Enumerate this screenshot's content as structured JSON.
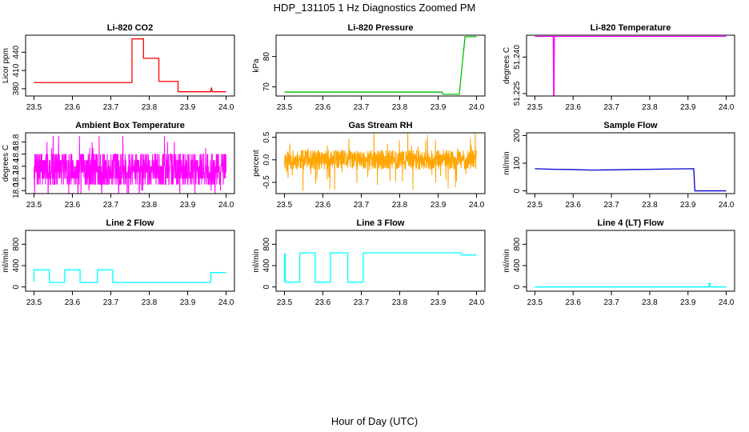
{
  "figure": {
    "title": "HDP_131105  1 Hz Diagnostics Zoomed PM",
    "xlabel": "Hour of Day (UTC)"
  },
  "chart_data": [
    {
      "type": "line",
      "title": "Li-820 CO2",
      "ylabel": "Licor ppm",
      "color": "#ff0000",
      "xlim": [
        23.5,
        24.0
      ],
      "ylim": [
        368,
        468
      ],
      "xticks": [
        "23.5",
        "23.6",
        "23.7",
        "23.8",
        "23.9",
        "24.0"
      ],
      "yticks": [
        {
          "value": 380,
          "label": "380"
        },
        {
          "value": 410,
          "label": "410"
        },
        {
          "value": 440,
          "label": "440"
        }
      ],
      "series": [
        {
          "x": [
            23.5,
            23.755,
            23.755,
            23.785,
            23.785,
            23.825,
            23.825,
            23.875,
            23.875,
            23.96,
            23.962,
            23.964,
            24.0
          ],
          "y": [
            390,
            390,
            462,
            462,
            430,
            430,
            392,
            392,
            375,
            375,
            382,
            375,
            375
          ]
        }
      ]
    },
    {
      "type": "line",
      "title": "Li-820 Pressure",
      "ylabel": "kPa",
      "color": "#00c000",
      "xlim": [
        23.5,
        24.0
      ],
      "ylim": [
        67,
        87
      ],
      "xticks": [
        "23.5",
        "23.6",
        "23.7",
        "23.8",
        "23.9",
        "24.0"
      ],
      "yticks": [
        {
          "value": 70,
          "label": "70"
        },
        {
          "value": 80,
          "label": "80"
        }
      ],
      "series": [
        {
          "x": [
            23.5,
            23.91,
            23.912,
            23.955,
            23.96,
            23.97,
            23.973,
            24.0
          ],
          "y": [
            68.3,
            68.3,
            67.6,
            67.6,
            74,
            86.5,
            86.5,
            86.5
          ]
        }
      ]
    },
    {
      "type": "line",
      "title": "Li-820 Temperature",
      "ylabel": "degrees C",
      "color": "#ff00ff",
      "xlim": [
        23.5,
        24.0
      ],
      "ylim": [
        51.224,
        51.249
      ],
      "xticks": [
        "23.5",
        "23.6",
        "23.7",
        "23.8",
        "23.9",
        "24.0"
      ],
      "yticks": [
        {
          "value": 51.225,
          "label": "51.225"
        },
        {
          "value": 51.24,
          "label": "51.240"
        }
      ],
      "series": [
        {
          "x": [
            23.5,
            23.548,
            23.549,
            23.55,
            23.551,
            24.0
          ],
          "y": [
            51.2485,
            51.2485,
            51.224,
            51.224,
            51.2485,
            51.2485
          ]
        }
      ]
    },
    {
      "type": "line",
      "title": "Ambient Box Temperature",
      "ylabel": "degrees C",
      "color": "#ff00ff",
      "xlim": [
        23.5,
        24.0
      ],
      "ylim": [
        17.95,
        18.95
      ],
      "xticks": [
        "23.5",
        "23.6",
        "23.7",
        "23.8",
        "23.9",
        "24.0"
      ],
      "yticks": [
        {
          "value": 18.0,
          "label": "18.0"
        },
        {
          "value": 18.2,
          "label": "18.2"
        },
        {
          "value": 18.4,
          "label": "18.4"
        },
        {
          "value": 18.6,
          "label": "18.6"
        },
        {
          "value": 18.8,
          "label": "18.8"
        }
      ],
      "noise": {
        "seed": 7,
        "n": 900,
        "center": 18.35,
        "amp": 0.3,
        "spike": 0.55,
        "step": 0.1
      }
    },
    {
      "type": "line",
      "title": "Gas Stream RH",
      "ylabel": "percent",
      "color": "#ffa500",
      "xlim": [
        23.5,
        24.0
      ],
      "ylim": [
        -0.75,
        0.6
      ],
      "xticks": [
        "23.5",
        "23.6",
        "23.7",
        "23.8",
        "23.9",
        "24.0"
      ],
      "yticks": [
        {
          "value": -0.5,
          "label": "-0.5"
        },
        {
          "value": 0.0,
          "label": "0.0"
        },
        {
          "value": 0.5,
          "label": "0.5"
        }
      ],
      "noise": {
        "seed": 11,
        "n": 900,
        "center": 0.0,
        "amp": 0.22,
        "spike": 0.7,
        "step": 0
      }
    },
    {
      "type": "line",
      "title": "Sample Flow",
      "ylabel": "ml/min",
      "color": "#0000cd",
      "xlim": [
        23.5,
        24.0
      ],
      "ylim": [
        -10,
        210
      ],
      "xticks": [
        "23.5",
        "23.6",
        "23.7",
        "23.8",
        "23.9",
        "24.0"
      ],
      "yticks": [
        {
          "value": 0,
          "label": "0"
        },
        {
          "value": 100,
          "label": "100"
        },
        {
          "value": 200,
          "label": "200"
        }
      ],
      "series": [
        {
          "x": [
            23.5,
            23.55,
            23.6,
            23.65,
            23.7,
            23.75,
            23.8,
            23.85,
            23.915,
            23.918,
            24.0
          ],
          "y": [
            80,
            78,
            77,
            75,
            76,
            77,
            78,
            79,
            80,
            0,
            0
          ]
        }
      ]
    },
    {
      "type": "line",
      "title": "Line 2 Flow",
      "ylabel": "ml/min",
      "color": "#00ffff",
      "xlim": [
        23.5,
        24.0
      ],
      "ylim": [
        -80,
        1060
      ],
      "xticks": [
        "23.5",
        "23.6",
        "23.7",
        "23.8",
        "23.9",
        "24.0"
      ],
      "yticks": [
        {
          "value": 0,
          "label": "0"
        },
        {
          "value": 400,
          "label": "400"
        },
        {
          "value": 800,
          "label": "800"
        }
      ],
      "series": [
        {
          "x": [
            23.5,
            23.5,
            23.54,
            23.54,
            23.58,
            23.58,
            23.62,
            23.62,
            23.665,
            23.665,
            23.705,
            23.705,
            23.96,
            23.96,
            24.0
          ],
          "y": [
            100,
            320,
            320,
            85,
            85,
            320,
            320,
            85,
            85,
            320,
            320,
            85,
            85,
            270,
            270
          ]
        }
      ]
    },
    {
      "type": "line",
      "title": "Line 3 Flow",
      "ylabel": "ml/min",
      "color": "#00ffff",
      "xlim": [
        23.5,
        24.0
      ],
      "ylim": [
        -80,
        1060
      ],
      "xticks": [
        "23.5",
        "23.6",
        "23.7",
        "23.8",
        "23.9",
        "24.0"
      ],
      "yticks": [
        {
          "value": 0,
          "label": "0"
        },
        {
          "value": 400,
          "label": "400"
        },
        {
          "value": 800,
          "label": "800"
        }
      ],
      "series": [
        {
          "x": [
            23.5,
            23.5,
            23.502,
            23.502,
            23.54,
            23.54,
            23.58,
            23.58,
            23.62,
            23.62,
            23.665,
            23.665,
            23.705,
            23.705,
            23.96,
            23.96,
            24.0
          ],
          "y": [
            100,
            620,
            620,
            90,
            90,
            640,
            640,
            90,
            90,
            640,
            640,
            90,
            90,
            640,
            640,
            600,
            600
          ]
        }
      ]
    },
    {
      "type": "line",
      "title": "Line 4 (LT) Flow",
      "ylabel": "ml/min",
      "color": "#00ffff",
      "xlim": [
        23.5,
        24.0
      ],
      "ylim": [
        -80,
        1060
      ],
      "xticks": [
        "23.5",
        "23.6",
        "23.7",
        "23.8",
        "23.9",
        "24.0"
      ],
      "yticks": [
        {
          "value": 0,
          "label": "0"
        },
        {
          "value": 400,
          "label": "400"
        },
        {
          "value": 800,
          "label": "800"
        }
      ],
      "series": [
        {
          "x": [
            23.5,
            23.955,
            23.955,
            23.957,
            23.957,
            24.0
          ],
          "y": [
            0,
            0,
            70,
            70,
            0,
            0
          ]
        }
      ]
    }
  ]
}
